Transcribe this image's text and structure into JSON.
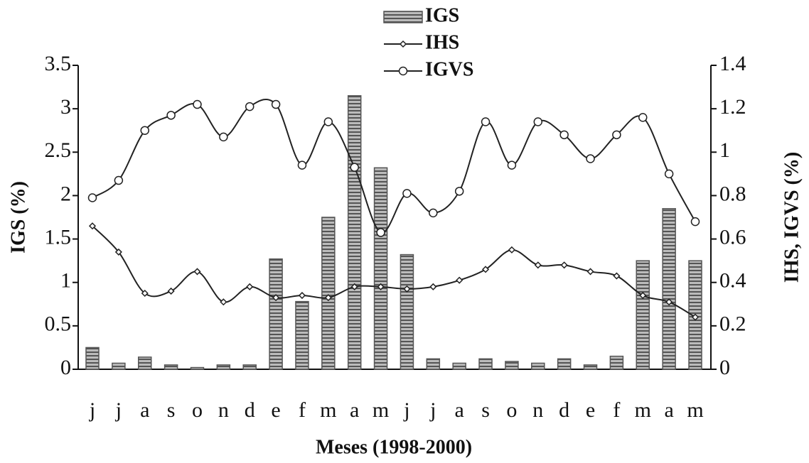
{
  "chart_data": {
    "type": "bar",
    "x_label": "Meses (1998-2000)",
    "y_label": "IGS (%)",
    "y2_label": "IHS, IGVS (%)",
    "categories": [
      "j",
      "j",
      "a",
      "s",
      "o",
      "n",
      "d",
      "e",
      "f",
      "m",
      "a",
      "m",
      "j",
      "j",
      "a",
      "s",
      "o",
      "n",
      "d",
      "e",
      "f",
      "m",
      "a",
      "m"
    ],
    "series": [
      {
        "name": "IGS",
        "type": "bar",
        "color": "#555555",
        "values": [
          0.25,
          0.07,
          0.14,
          0.05,
          0.02,
          0.05,
          0.05,
          1.27,
          0.78,
          1.75,
          3.15,
          2.32,
          1.32,
          0.12,
          0.07,
          0.12,
          0.09,
          0.07,
          0.12,
          0.05,
          0.15,
          1.25,
          1.85,
          1.25
        ]
      },
      {
        "name": "IHS",
        "type": "line",
        "axis": "y2",
        "marker": "diamond",
        "color": "#222222",
        "values": [
          0.66,
          0.54,
          0.35,
          0.36,
          0.45,
          0.31,
          0.38,
          0.33,
          0.34,
          0.33,
          0.38,
          0.38,
          0.37,
          0.38,
          0.41,
          0.46,
          0.55,
          0.48,
          0.48,
          0.45,
          0.43,
          0.34,
          0.31,
          0.24
        ]
      },
      {
        "name": "IGVS",
        "type": "line",
        "axis": "y2",
        "marker": "circle",
        "color": "#222222",
        "values": [
          0.79,
          0.87,
          1.1,
          1.17,
          1.22,
          1.07,
          1.21,
          1.22,
          0.94,
          1.14,
          0.93,
          0.63,
          0.81,
          0.72,
          0.82,
          1.14,
          0.94,
          1.14,
          1.08,
          0.97,
          1.08,
          1.16,
          0.9,
          0.68
        ]
      }
    ],
    "ylim": [
      0,
      3.5
    ],
    "yticks": [
      0,
      0.5,
      1,
      1.5,
      2,
      2.5,
      3,
      3.5
    ],
    "y2lim": [
      0,
      1.4
    ],
    "y2ticks": [
      0,
      0.2,
      0.4,
      0.6,
      0.8,
      1,
      1.2,
      1.4
    ]
  }
}
